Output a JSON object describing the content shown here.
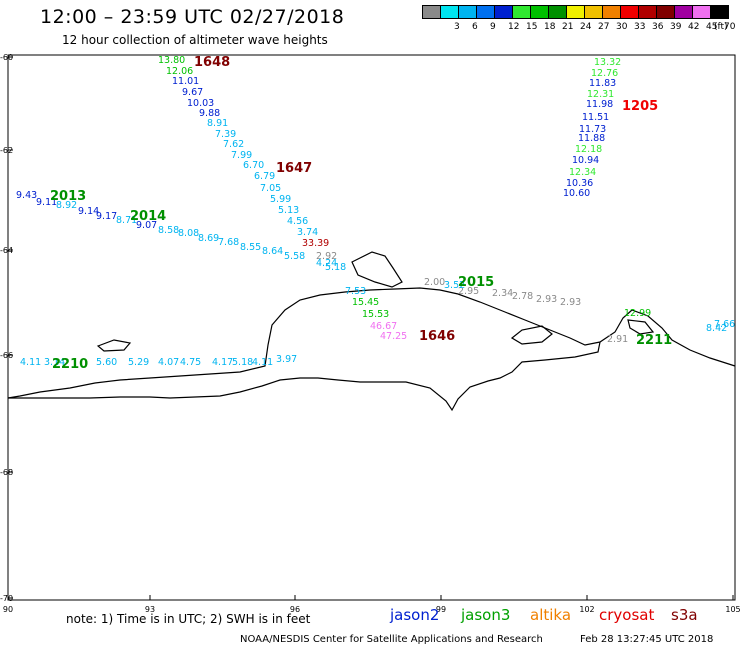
{
  "header": {
    "title": "12:00 – 23:59 UTC 02/27/2018",
    "subtitle": "12 hour collection of altimeter wave heights"
  },
  "legend": {
    "unit": "(ft)",
    "bins": [
      {
        "label": "",
        "color": "#8a8a8a"
      },
      {
        "label": "3",
        "color": "#00e5f0"
      },
      {
        "label": "6",
        "color": "#00b4f0"
      },
      {
        "label": "9",
        "color": "#0070f0"
      },
      {
        "label": "12",
        "color": "#0020d0"
      },
      {
        "label": "15",
        "color": "#30e830"
      },
      {
        "label": "18",
        "color": "#00c000"
      },
      {
        "label": "21",
        "color": "#009000"
      },
      {
        "label": "24",
        "color": "#f0f000"
      },
      {
        "label": "27",
        "color": "#f0c000"
      },
      {
        "label": "30",
        "color": "#f08000"
      },
      {
        "label": "33",
        "color": "#f00000"
      },
      {
        "label": "36",
        "color": "#b00000"
      },
      {
        "label": "39",
        "color": "#800000"
      },
      {
        "label": "42",
        "color": "#a000a0"
      },
      {
        "label": "45",
        "color": "#f070f0"
      },
      {
        "label": "70",
        "color": "#000000"
      }
    ]
  },
  "axes": {
    "lat_labels": [
      "-60",
      "-62",
      "-64",
      "-66",
      "-68",
      "-70"
    ],
    "lon_labels": [
      "90",
      "93",
      "96",
      "99",
      "102",
      "105"
    ]
  },
  "tracks": [
    {
      "color": "#00c000",
      "values": [
        "13.80",
        "12.06"
      ]
    },
    {
      "color": "#0020d0",
      "values": [
        "11.01",
        "9.67",
        "10.03",
        "9.88"
      ]
    },
    {
      "color": "#00b4f0",
      "values": [
        "8.91",
        "7.39",
        "7.62",
        "7.99",
        "6.70",
        "6.79",
        "7.05",
        "5.99",
        "5.13",
        "4.56",
        "3.74"
      ]
    },
    {
      "color": "#b00000",
      "values": [
        "33.39"
      ]
    },
    {
      "color": "#8a8a8a",
      "values": [
        "2.92"
      ]
    },
    {
      "color": "#00b4f0",
      "values": [
        "4.24",
        "5.18"
      ]
    },
    {
      "color": "#0020d0",
      "values": [
        "9.43",
        "9.11",
        "9.14",
        "9.17",
        "9.07"
      ]
    },
    {
      "color": "#00b4f0",
      "values": [
        "8.92",
        "8.71",
        "8.58",
        "8.08",
        "8.69",
        "7.68",
        "8.55",
        "8.64",
        "5.58"
      ]
    },
    {
      "color": "#00b4f0",
      "values": [
        "7.53"
      ]
    },
    {
      "color": "#00c000",
      "values": [
        "15.45",
        "15.53"
      ]
    },
    {
      "color": "#f070f0",
      "values": [
        "46.67",
        "47.25"
      ]
    },
    {
      "color": "#8a8a8a",
      "values": [
        "2.00",
        "2.95",
        "2.34",
        "2.78",
        "2.93",
        "2.93",
        "2.91"
      ]
    },
    {
      "color": "#00b4f0",
      "values": [
        "3.52"
      ]
    },
    {
      "color": "#30e830",
      "values": [
        "13.32",
        "12.76",
        "12.31",
        "12.18",
        "12.34"
      ]
    },
    {
      "color": "#0020d0",
      "values": [
        "11.83",
        "11.98",
        "11.51",
        "11.73",
        "11.88",
        "10.94",
        "10.36",
        "10.60"
      ]
    },
    {
      "color": "#00c000",
      "values": [
        "12.99"
      ]
    },
    {
      "color": "#00b4f0",
      "values": [
        "7.66",
        "8.42"
      ]
    },
    {
      "color": "#00b4f0",
      "values": [
        "4.11",
        "3.14",
        "5.60",
        "5.29",
        "4.07",
        "4.75",
        "4.17",
        "5.18",
        "4.11",
        "3.97"
      ]
    }
  ],
  "time_labels": [
    {
      "text": "1648",
      "color": "#800000"
    },
    {
      "text": "1205",
      "color": "#f00000"
    },
    {
      "text": "1647",
      "color": "#800000"
    },
    {
      "text": "2013",
      "color": "#009000"
    },
    {
      "text": "2014",
      "color": "#009000"
    },
    {
      "text": "2015",
      "color": "#009000"
    },
    {
      "text": "1646",
      "color": "#800000"
    },
    {
      "text": "2211",
      "color": "#009000"
    },
    {
      "text": "2210",
      "color": "#009000"
    }
  ],
  "footer": {
    "note": "note:  1) Time is in UTC;  2) SWH is in feet",
    "satellites": [
      {
        "name": "jason2",
        "color": "#0020d0"
      },
      {
        "name": "jason3",
        "color": "#00a000"
      },
      {
        "name": "altika",
        "color": "#f08000"
      },
      {
        "name": "cryosat",
        "color": "#e00000"
      },
      {
        "name": "s3a",
        "color": "#800000"
      }
    ],
    "credit": "NOAA/NESDIS Center for Satellite Applications and Research",
    "stamp": "Feb 28 13:27:45 UTC 2018"
  }
}
